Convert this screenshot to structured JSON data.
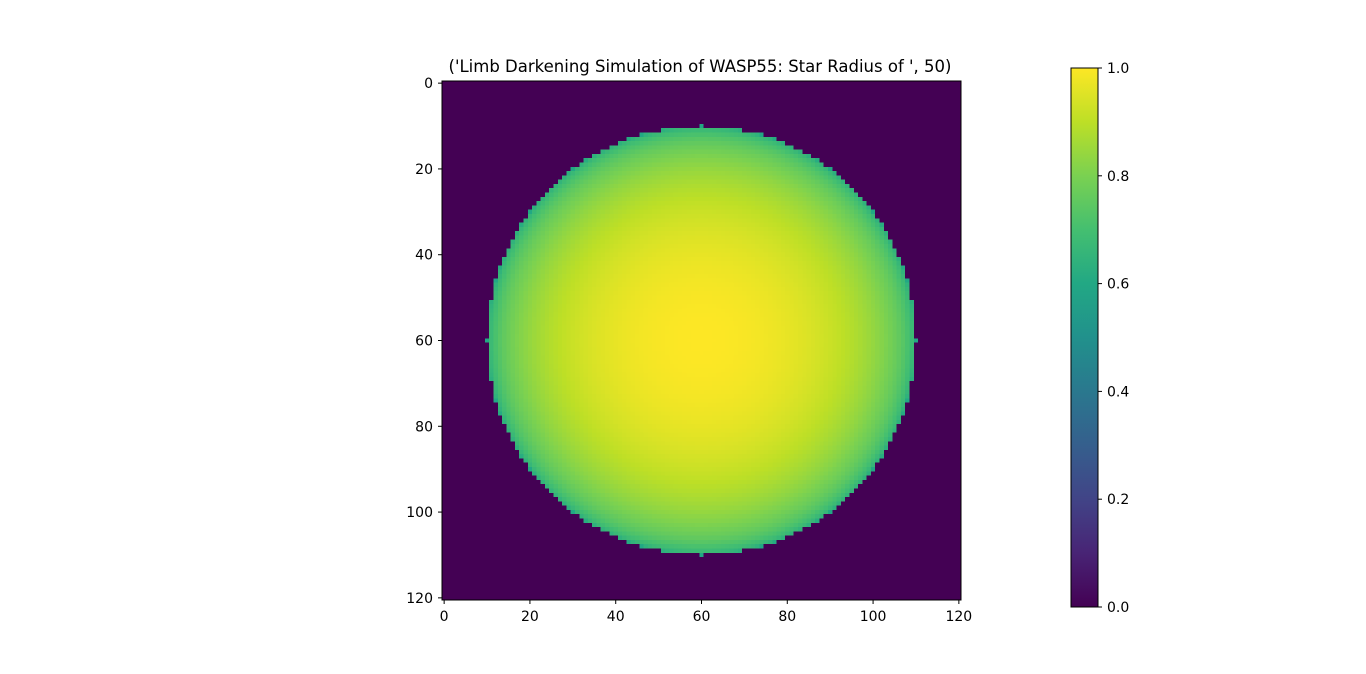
{
  "chart_data": {
    "type": "heatmap",
    "title": "('Limb Darkening Simulation of WASP55: Star Radius of ', 50)",
    "xlabel": "",
    "ylabel": "",
    "grid": false,
    "colormap": "viridis",
    "image_size": [
      121,
      121
    ],
    "xlim": [
      0,
      121
    ],
    "ylim": [
      121,
      0
    ],
    "x_ticks": [
      0,
      20,
      40,
      60,
      80,
      100,
      120
    ],
    "x_tick_labels": [
      "0",
      "20",
      "40",
      "60",
      "80",
      "100",
      "120"
    ],
    "y_ticks": [
      0,
      20,
      40,
      60,
      80,
      100,
      120
    ],
    "y_tick_labels": [
      "0",
      "20",
      "40",
      "60",
      "80",
      "100",
      "120"
    ],
    "star": {
      "center_x": 60,
      "center_y": 60,
      "radius": 50,
      "center_value": 1.0,
      "limb_value": 0.6,
      "background_value": 0.0
    },
    "colorbar": {
      "range": [
        0.0,
        1.0
      ],
      "ticks": [
        0.0,
        0.2,
        0.4,
        0.6,
        0.8,
        1.0
      ],
      "tick_labels": [
        "0.0",
        "0.2",
        "0.4",
        "0.6",
        "0.8",
        "1.0"
      ]
    }
  }
}
